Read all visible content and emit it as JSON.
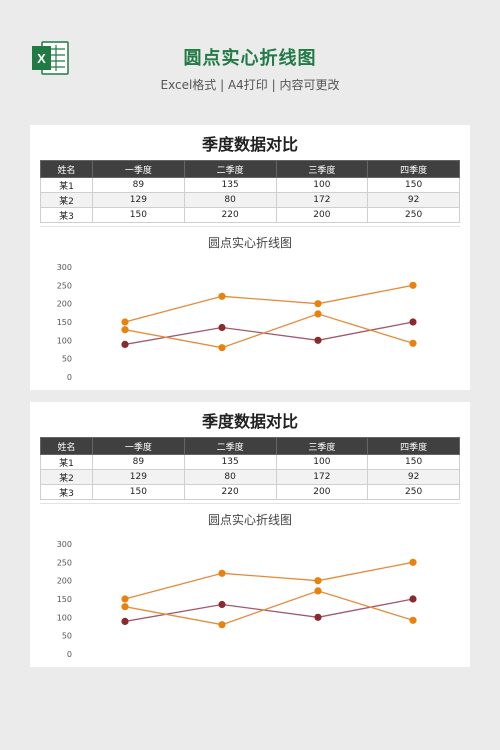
{
  "header": {
    "title": "圆点实心折线图",
    "subtitle": "Excel格式 | A4打印 | 内容可更改",
    "icon": "excel-icon",
    "icon_letter": "X"
  },
  "cards": [
    {
      "title": "季度数据对比",
      "table": {
        "headers": [
          "姓名",
          "一季度",
          "二季度",
          "三季度",
          "四季度"
        ],
        "rows": [
          [
            "某1",
            "89",
            "135",
            "100",
            "150"
          ],
          [
            "某2",
            "129",
            "80",
            "172",
            "92"
          ],
          [
            "某3",
            "150",
            "220",
            "200",
            "250"
          ]
        ]
      }
    },
    {
      "title": "季度数据对比",
      "table": {
        "headers": [
          "姓名",
          "一季度",
          "二季度",
          "三季度",
          "四季度"
        ],
        "rows": [
          [
            "某1",
            "89",
            "135",
            "100",
            "150"
          ],
          [
            "某2",
            "129",
            "80",
            "172",
            "92"
          ],
          [
            "某3",
            "150",
            "220",
            "200",
            "250"
          ]
        ]
      }
    }
  ],
  "chart_data": [
    {
      "type": "line",
      "title": "圆点实心折线图",
      "categories": [
        "一季度",
        "二季度",
        "三季度",
        "四季度"
      ],
      "series": [
        {
          "name": "某1",
          "values": [
            89,
            135,
            100,
            150
          ],
          "color": "#a0596c",
          "marker": "#8b2a2a"
        },
        {
          "name": "某2",
          "values": [
            129,
            80,
            172,
            92
          ],
          "color": "#e58b3a",
          "marker": "#e8820e"
        },
        {
          "name": "某3",
          "values": [
            150,
            220,
            200,
            250
          ],
          "color": "#e58b3a",
          "marker": "#e8820e"
        }
      ],
      "ylim": [
        0,
        300
      ],
      "yticks": [
        0,
        50,
        100,
        150,
        200,
        250,
        300
      ],
      "show_xlabels": false,
      "grid": false
    },
    {
      "type": "line",
      "title": "圆点实心折线图",
      "categories": [
        "一季度",
        "二季度",
        "三季度",
        "四季度"
      ],
      "series": [
        {
          "name": "某1",
          "values": [
            89,
            135,
            100,
            150
          ],
          "color": "#a0596c",
          "marker": "#8b2a2a"
        },
        {
          "name": "某2",
          "values": [
            129,
            80,
            172,
            92
          ],
          "color": "#e58b3a",
          "marker": "#e8820e"
        },
        {
          "name": "某3",
          "values": [
            150,
            220,
            200,
            250
          ],
          "color": "#e58b3a",
          "marker": "#e8820e"
        }
      ],
      "ylim": [
        0,
        300
      ],
      "yticks": [
        0,
        50,
        100,
        150,
        200,
        250,
        300
      ],
      "show_xlabels": false,
      "grid": false
    }
  ]
}
